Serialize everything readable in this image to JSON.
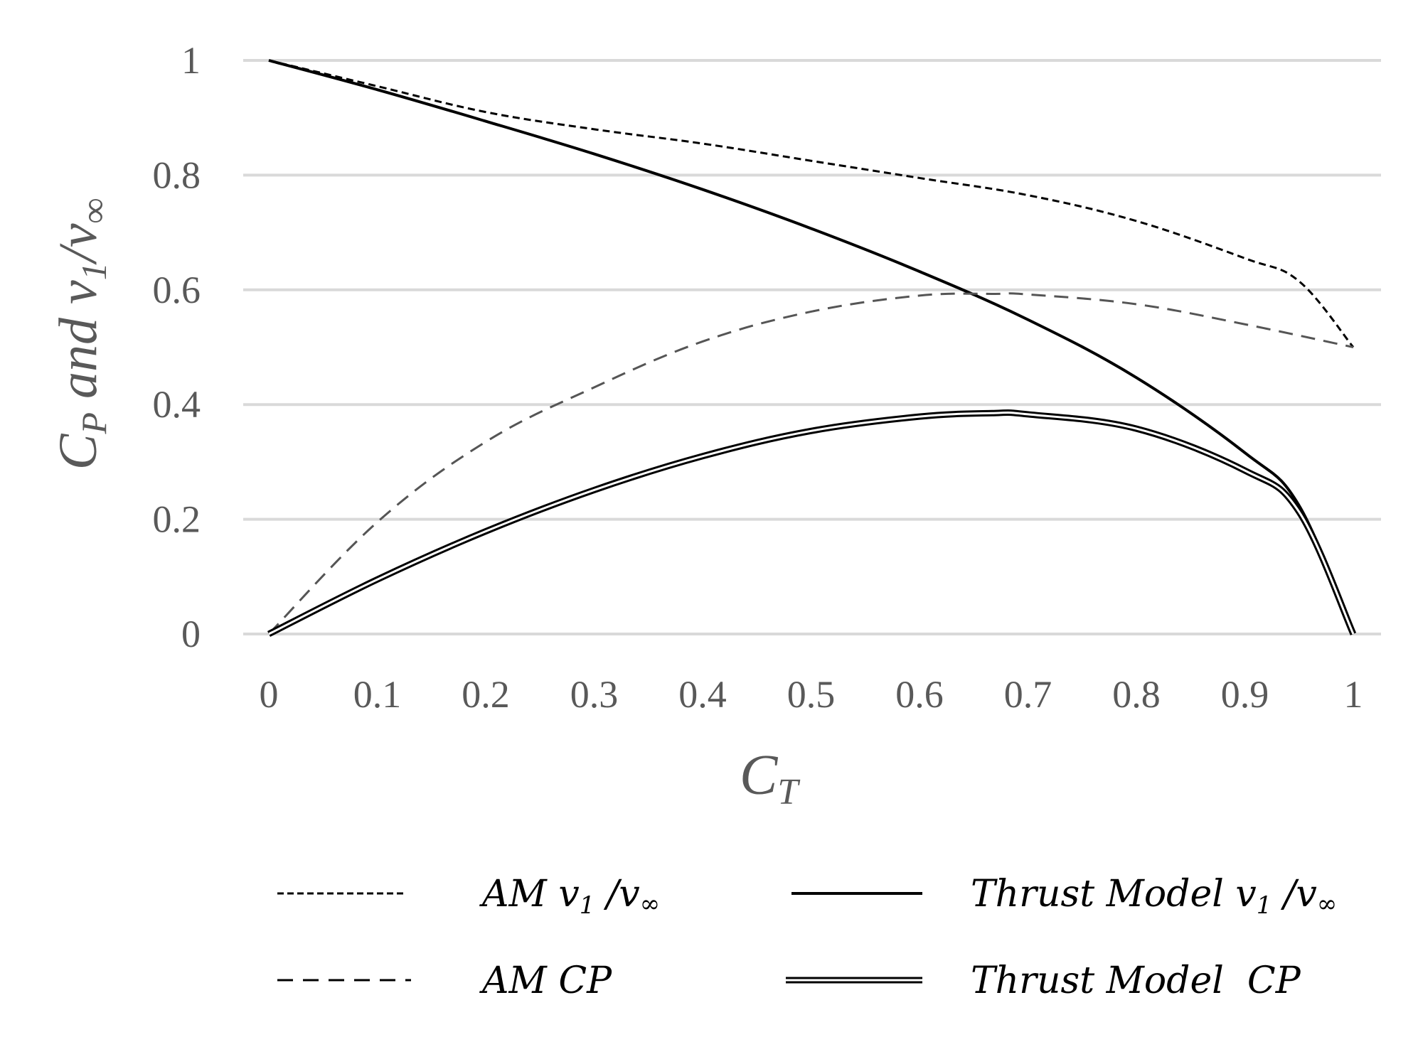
{
  "chart_data": {
    "type": "line",
    "title": "",
    "xlabel": {
      "main": "C",
      "sub": "T"
    },
    "ylabel": {
      "c": "C",
      "p": "P",
      "and": " and ",
      "v": "v",
      "one": "1",
      "slash": "/",
      "inf": "∞"
    },
    "xlim": [
      0,
      1
    ],
    "ylim": [
      0,
      1
    ],
    "xticks": [
      "0",
      "0.1",
      "0.2",
      "0.3",
      "0.4",
      "0.5",
      "0.6",
      "0.7",
      "0.8",
      "0.9",
      "1"
    ],
    "yticks": [
      "0",
      "0.2",
      "0.4",
      "0.6",
      "0.8",
      "1"
    ],
    "grid": "horizontal",
    "legend_position": "bottom",
    "series": [
      {
        "name": "AM v₁/v∞",
        "style": "dotted",
        "x": [
          0,
          0.1,
          0.2,
          0.3,
          0.4,
          0.5,
          0.6,
          0.7,
          0.8,
          0.9,
          0.95,
          1.0
        ],
        "y": [
          1.0,
          0.955,
          0.91,
          0.88,
          0.855,
          0.825,
          0.795,
          0.765,
          0.72,
          0.655,
          0.615,
          0.5
        ]
      },
      {
        "name": "Thrust Model v₁/v∞",
        "style": "solid",
        "x": [
          0,
          0.1,
          0.2,
          0.3,
          0.4,
          0.5,
          0.6,
          0.7,
          0.8,
          0.9,
          0.95,
          1.0
        ],
        "y": [
          1.0,
          0.949,
          0.894,
          0.837,
          0.775,
          0.707,
          0.632,
          0.548,
          0.447,
          0.316,
          0.224,
          0.0
        ]
      },
      {
        "name": "AM CP",
        "style": "dashed",
        "x": [
          0,
          0.1,
          0.2,
          0.3,
          0.4,
          0.5,
          0.6,
          0.67,
          0.7,
          0.8,
          0.9,
          1.0
        ],
        "y": [
          0,
          0.195,
          0.335,
          0.43,
          0.51,
          0.562,
          0.59,
          0.593,
          0.592,
          0.575,
          0.54,
          0.5
        ]
      },
      {
        "name": "Thrust Model CP",
        "style": "double",
        "x": [
          0,
          0.1,
          0.2,
          0.3,
          0.4,
          0.5,
          0.6,
          0.667,
          0.7,
          0.8,
          0.9,
          0.95,
          1.0
        ],
        "y": [
          0,
          0.095,
          0.179,
          0.251,
          0.31,
          0.354,
          0.379,
          0.385,
          0.383,
          0.358,
          0.285,
          0.213,
          0.0
        ]
      }
    ],
    "legend": [
      {
        "label_main": "AM v",
        "label_sub": "1",
        "label_rest": " /v",
        "label_sub2": "∞"
      },
      {
        "label_main": "Thrust Model v",
        "label_sub": "1",
        "label_rest": " /v",
        "label_sub2": "∞"
      },
      {
        "label_main": "AM CP",
        "label_sub": "",
        "label_rest": "",
        "label_sub2": ""
      },
      {
        "label_main": "Thrust Model  CP",
        "label_sub": "",
        "label_rest": "",
        "label_sub2": ""
      }
    ]
  }
}
